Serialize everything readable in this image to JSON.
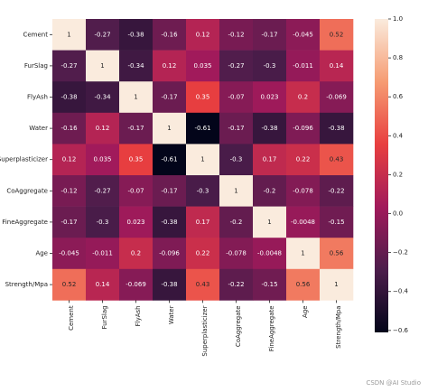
{
  "chart_data": {
    "type": "heatmap",
    "rows": [
      "Cement",
      "FurSlag",
      "FlyAsh",
      "Water",
      "Superplasticizer",
      "CoAggregate",
      "FineAggregate",
      "Age",
      "Strength/Mpa"
    ],
    "columns": [
      "Cement",
      "FurSlag",
      "FlyAsh",
      "Water",
      "Superplasticizer",
      "CoAggregate",
      "FineAggregate",
      "Age",
      "Strength/Mpa"
    ],
    "values": [
      [
        1,
        -0.27,
        -0.38,
        -0.16,
        0.12,
        -0.12,
        -0.17,
        -0.045,
        0.52
      ],
      [
        -0.27,
        1,
        -0.34,
        0.12,
        0.035,
        -0.27,
        -0.3,
        -0.011,
        0.14
      ],
      [
        -0.38,
        -0.34,
        1,
        -0.17,
        0.35,
        -0.07,
        0.023,
        0.2,
        -0.069
      ],
      [
        -0.16,
        0.12,
        -0.17,
        1,
        -0.61,
        -0.17,
        -0.38,
        -0.096,
        -0.38
      ],
      [
        0.12,
        0.035,
        0.35,
        -0.61,
        1,
        -0.3,
        0.17,
        0.22,
        0.43
      ],
      [
        -0.12,
        -0.27,
        -0.07,
        -0.17,
        -0.3,
        1,
        -0.2,
        -0.078,
        -0.22
      ],
      [
        -0.17,
        -0.3,
        0.023,
        -0.38,
        0.17,
        -0.2,
        1,
        -0.0048,
        -0.15
      ],
      [
        -0.045,
        -0.011,
        0.2,
        -0.096,
        0.22,
        -0.078,
        -0.0048,
        1,
        0.56
      ],
      [
        0.52,
        0.14,
        -0.069,
        -0.38,
        0.43,
        -0.22,
        -0.15,
        0.56,
        1
      ]
    ],
    "labels": [
      [
        "1",
        "-0.27",
        "-0.38",
        "-0.16",
        "0.12",
        "-0.12",
        "-0.17",
        "-0.045",
        "0.52"
      ],
      [
        "-0.27",
        "1",
        "-0.34",
        "0.12",
        "0.035",
        "-0.27",
        "-0.3",
        "-0.011",
        "0.14"
      ],
      [
        "-0.38",
        "-0.34",
        "1",
        "-0.17",
        "0.35",
        "-0.07",
        "0.023",
        "0.2",
        "-0.069"
      ],
      [
        "-0.16",
        "0.12",
        "-0.17",
        "1",
        "-0.61",
        "-0.17",
        "-0.38",
        "-0.096",
        "-0.38"
      ],
      [
        "0.12",
        "0.035",
        "0.35",
        "-0.61",
        "1",
        "-0.3",
        "0.17",
        "0.22",
        "0.43"
      ],
      [
        "-0.12",
        "-0.27",
        "-0.07",
        "-0.17",
        "-0.3",
        "1",
        "-0.2",
        "-0.078",
        "-0.22"
      ],
      [
        "-0.17",
        "-0.3",
        "0.023",
        "-0.38",
        "0.17",
        "-0.2",
        "1",
        "-0.0048",
        "-0.15"
      ],
      [
        "-0.045",
        "-0.011",
        "0.2",
        "-0.096",
        "0.22",
        "-0.078",
        "-0.0048",
        "1",
        "0.56"
      ],
      [
        "0.52",
        "0.14",
        "-0.069",
        "-0.38",
        "0.43",
        "-0.22",
        "-0.15",
        "0.56",
        "1"
      ]
    ],
    "colorbar": {
      "range": [
        -0.61,
        1
      ],
      "ticks": [
        1.0,
        0.8,
        0.6,
        0.4,
        0.2,
        0.0,
        -0.2,
        -0.4,
        -0.6
      ],
      "tick_labels": [
        "1.0",
        "0.8",
        "0.6",
        "0.4",
        "0.2",
        "0.0",
        "−0.2",
        "−0.4",
        "−0.6"
      ],
      "colormap": "rocket",
      "stops": [
        "#03051a",
        "#4c1d4b",
        "#a11a5b",
        "#e83f3f",
        "#f69c73",
        "#faebdd"
      ]
    },
    "title": "",
    "xlabel": "",
    "ylabel": ""
  },
  "watermark": "CSDN @AI Studio"
}
